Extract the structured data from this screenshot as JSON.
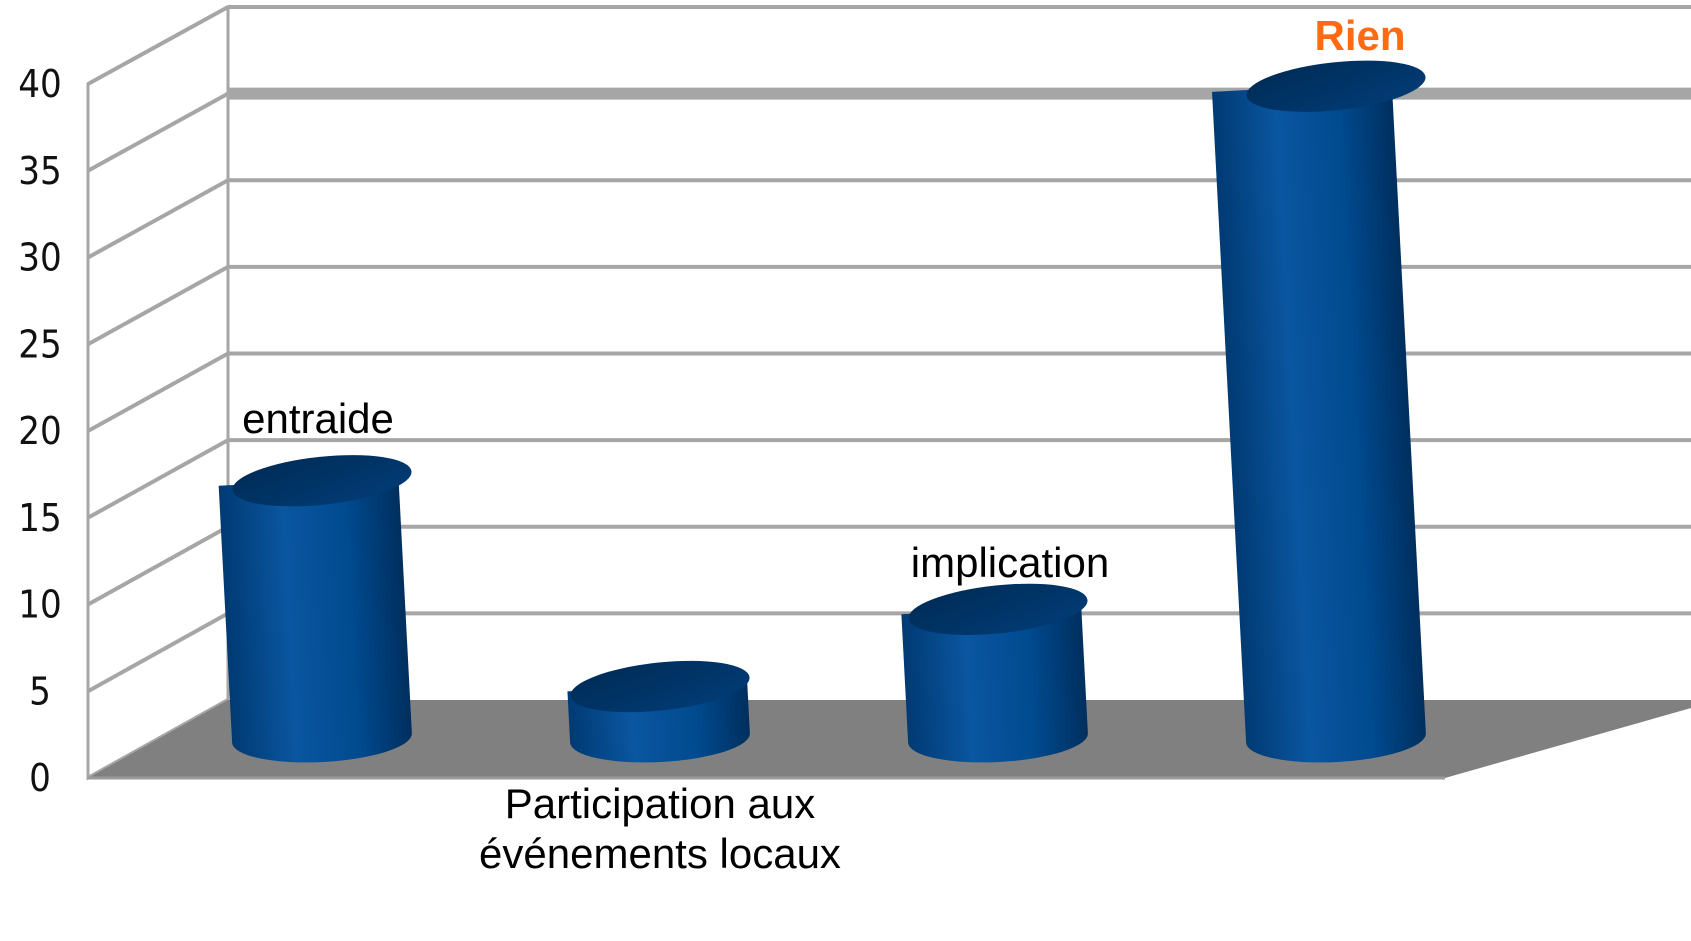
{
  "chart_data": {
    "type": "bar",
    "style": "3d-cylinder",
    "categories": [
      "entraide",
      "Participation aux événements locaux",
      "implication",
      "Rien"
    ],
    "category_label_lines": [
      [
        "entraide"
      ],
      [
        "Participation aux",
        "événements locaux"
      ],
      [
        "implication"
      ],
      [
        "Rien"
      ]
    ],
    "values": [
      15,
      3,
      7.5,
      38
    ],
    "ylim": [
      0,
      40
    ],
    "yticks": [
      "0",
      "5",
      "10",
      "15",
      "20",
      "25",
      "30",
      "35",
      "40"
    ],
    "grid": true,
    "legend": "none",
    "colors": {
      "bar": "#004a8f",
      "bar_top": "#01386c",
      "bar_highlight": "#1a66b0",
      "floor": "#808080",
      "grid": "#a6a6a6",
      "accent_label": "#ff6a13"
    },
    "highlight_category": "Rien"
  }
}
